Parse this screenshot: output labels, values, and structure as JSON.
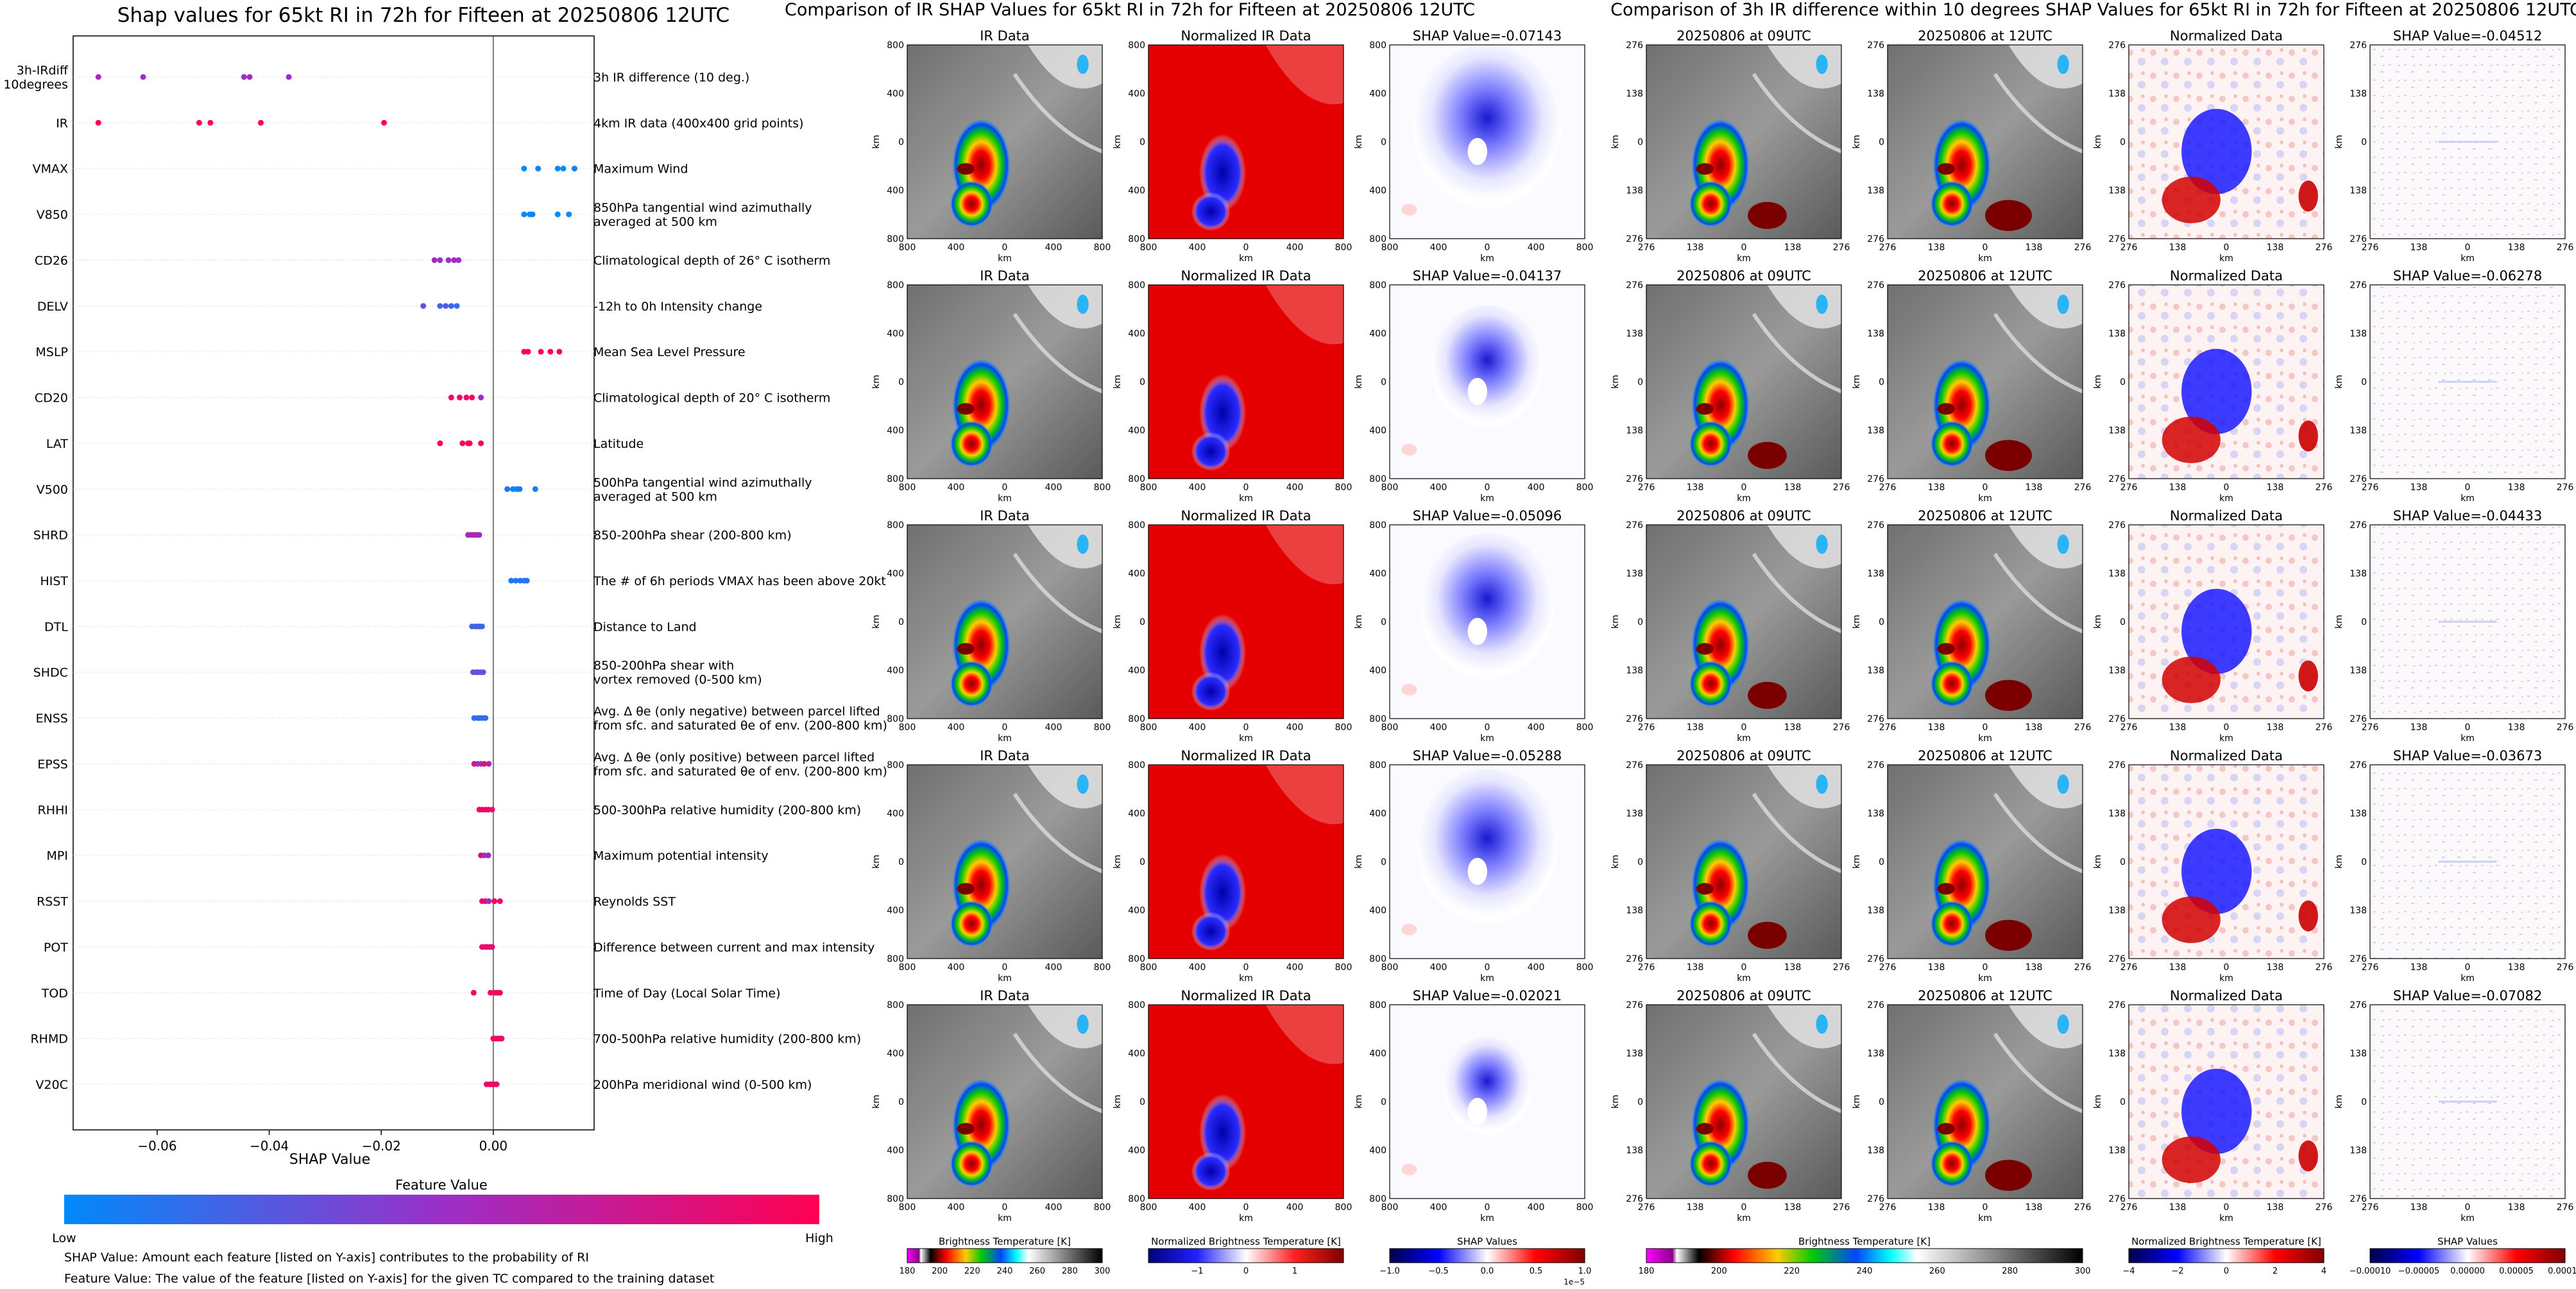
{
  "left_panel": {
    "title": "Shap values for 65kt RI in 72h for Fifteen at 20250806 12UTC",
    "xlabel": "SHAP Value",
    "colorbar_title": "Feature Value",
    "colorbar_low": "Low",
    "colorbar_high": "High",
    "footnote_1": "SHAP Value: Amount each feature [listed on Y-axis] contributes to the probability of RI",
    "footnote_2": "Feature Value: The value of the feature [listed on Y-axis] for the given TC compared to the training dataset"
  },
  "middle_panel": {
    "title": "Comparison of IR SHAP Values for 65kt RI in 72h for Fifteen at 20250806 12UTC",
    "col_titles": [
      "IR Data",
      "Normalized IR Data"
    ],
    "shap_prefix": "SHAP Value=",
    "shap_values": [
      "-0.07143",
      "-0.04137",
      "-0.05096",
      "-0.05288",
      "-0.02021"
    ],
    "ticks": [
      "800",
      "400",
      "0",
      "400",
      "800"
    ],
    "axis_label": "km",
    "colorbars": [
      {
        "label": "Brightness Temperature [K]",
        "ticks": [
          "180",
          "200",
          "220",
          "240",
          "260",
          "280",
          "300"
        ]
      },
      {
        "label": "Normalized Brightness Temperature [K]",
        "ticks": [
          "−1",
          "0",
          "1"
        ]
      },
      {
        "label": "SHAP Values",
        "ticks": [
          "−1.0",
          "−0.5",
          "0.0",
          "0.5",
          "1.0"
        ],
        "offset": "1e−5"
      }
    ]
  },
  "right_panel": {
    "title": "Comparison of 3h IR difference within 10 degrees SHAP Values for 65kt RI in 72h for Fifteen at 20250806 12UTC",
    "col_titles": [
      "20250806 at 09UTC",
      "20250806 at 12UTC",
      "Normalized Data"
    ],
    "shap_prefix": "SHAP Value=",
    "shap_values": [
      "-0.04512",
      "-0.06278",
      "-0.04433",
      "-0.03673",
      "-0.07082"
    ],
    "ticks": [
      "276",
      "138",
      "0",
      "138",
      "276"
    ],
    "axis_label": "km",
    "colorbars": [
      {
        "label": "Brightness Temperature [K]",
        "ticks": [
          "180",
          "200",
          "220",
          "240",
          "260",
          "280",
          "300"
        ]
      },
      {
        "label": "Normalized Brightness Temperature [K]",
        "ticks": [
          "−4",
          "−2",
          "0",
          "2",
          "4"
        ]
      },
      {
        "label": "SHAP Values",
        "ticks": [
          "−0.00010",
          "−0.00005",
          "0.00000",
          "0.00005",
          "0.00010"
        ]
      }
    ]
  },
  "colors": {
    "low": "#008afb",
    "mid": "#9b2fc8",
    "high": "#ff0052"
  },
  "chart_data": {
    "type": "scatter",
    "title": "Shap values for 65kt RI in 72h for Fifteen at 20250806 12UTC",
    "xlabel": "SHAP Value",
    "xlim": [
      -0.075,
      0.018
    ],
    "xticks": [
      "−0.06",
      "−0.04",
      "−0.02",
      "0.00"
    ],
    "xtick_values": [
      -0.06,
      -0.04,
      -0.02,
      0.0
    ],
    "features": [
      {
        "name": "3h-IRdiff\n10degrees",
        "desc": "3h IR difference (10 deg.)",
        "points": [
          [
            -0.0705,
            0.55
          ],
          [
            -0.0625,
            0.5
          ],
          [
            -0.0445,
            0.5
          ],
          [
            -0.0435,
            0.55
          ],
          [
            -0.0365,
            0.5
          ]
        ]
      },
      {
        "name": "IR",
        "desc": "4km IR data (400x400 grid points)",
        "points": [
          [
            -0.0705,
            1
          ],
          [
            -0.0525,
            1
          ],
          [
            -0.0505,
            1
          ],
          [
            -0.0415,
            1
          ],
          [
            -0.0195,
            1
          ]
        ]
      },
      {
        "name": "VMAX",
        "desc": "Maximum Wind",
        "points": [
          [
            0.0055,
            0
          ],
          [
            0.008,
            0.05
          ],
          [
            0.0115,
            0
          ],
          [
            0.0125,
            0
          ],
          [
            0.0145,
            0.05
          ]
        ]
      },
      {
        "name": "V850",
        "desc": "850hPa tangential wind azimuthally\naveraged at 500 km",
        "points": [
          [
            0.0055,
            0
          ],
          [
            0.0065,
            0
          ],
          [
            0.007,
            0.05
          ],
          [
            0.0115,
            0
          ],
          [
            0.0135,
            0
          ]
        ]
      },
      {
        "name": "CD26",
        "desc": "Climatological depth of 26° C isotherm",
        "points": [
          [
            -0.0105,
            0.55
          ],
          [
            -0.0095,
            0.5
          ],
          [
            -0.008,
            0.5
          ],
          [
            -0.007,
            0.55
          ],
          [
            -0.0062,
            0.5
          ]
        ]
      },
      {
        "name": "DELV",
        "desc": "-12h to 0h Intensity change",
        "points": [
          [
            -0.0125,
            0.3
          ],
          [
            -0.0095,
            0.2
          ],
          [
            -0.0085,
            0.25
          ],
          [
            -0.0075,
            0.2
          ],
          [
            -0.0065,
            0.15
          ]
        ]
      },
      {
        "name": "MSLP",
        "desc": "Mean Sea Level Pressure",
        "points": [
          [
            0.0055,
            1
          ],
          [
            0.0062,
            1
          ],
          [
            0.0085,
            1
          ],
          [
            0.0102,
            1
          ],
          [
            0.0118,
            1
          ]
        ]
      },
      {
        "name": "CD20",
        "desc": "Climatological depth of 20° C isotherm",
        "points": [
          [
            -0.0075,
            0.9
          ],
          [
            -0.006,
            0.95
          ],
          [
            -0.0048,
            0.9
          ],
          [
            -0.0038,
            0.95
          ],
          [
            -0.0022,
            0.5
          ]
        ]
      },
      {
        "name": "LAT",
        "desc": "Latitude",
        "points": [
          [
            -0.0095,
            1
          ],
          [
            -0.0055,
            0.95
          ],
          [
            -0.0045,
            0.9
          ],
          [
            -0.0042,
            1
          ],
          [
            -0.0022,
            0.95
          ]
        ]
      },
      {
        "name": "V500",
        "desc": "500hPa tangential wind azimuthally\naveraged at 500 km",
        "points": [
          [
            0.0025,
            0.1
          ],
          [
            0.0035,
            0.05
          ],
          [
            0.0042,
            0
          ],
          [
            0.0047,
            0.1
          ],
          [
            0.0075,
            0.05
          ]
        ]
      },
      {
        "name": "SHRD",
        "desc": "850-200hPa shear (200-800 km)",
        "points": [
          [
            -0.0045,
            0.6
          ],
          [
            -0.004,
            0.55
          ],
          [
            -0.0035,
            0.6
          ],
          [
            -0.003,
            0.6
          ],
          [
            -0.0025,
            0.55
          ]
        ]
      },
      {
        "name": "HIST",
        "desc": "The # of 6h periods VMAX has been above 20kt",
        "points": [
          [
            0.0032,
            0.1
          ],
          [
            0.004,
            0.1
          ],
          [
            0.0048,
            0.1
          ],
          [
            0.0055,
            0.1
          ],
          [
            0.006,
            0.1
          ]
        ]
      },
      {
        "name": "DTL",
        "desc": "Distance to Land",
        "points": [
          [
            -0.0038,
            0.2
          ],
          [
            -0.0032,
            0.25
          ],
          [
            -0.0028,
            0.2
          ],
          [
            -0.0024,
            0.25
          ],
          [
            -0.002,
            0.2
          ]
        ]
      },
      {
        "name": "SHDC",
        "desc": "850-200hPa shear with\nvortex removed (0-500 km)",
        "points": [
          [
            -0.0036,
            0.3
          ],
          [
            -0.003,
            0.35
          ],
          [
            -0.0026,
            0.3
          ],
          [
            -0.0022,
            0.25
          ],
          [
            -0.0018,
            0.3
          ]
        ]
      },
      {
        "name": "ENSS",
        "desc": "Avg. Δ θe (only negative) between parcel lifted\nfrom sfc. and saturated θe of env. (200-800 km)",
        "points": [
          [
            -0.0034,
            0.15
          ],
          [
            -0.0028,
            0.2
          ],
          [
            -0.0024,
            0.15
          ],
          [
            -0.0019,
            0.2
          ],
          [
            -0.0014,
            0.15
          ]
        ]
      },
      {
        "name": "EPSS",
        "desc": "Avg. Δ θe (only positive) between parcel lifted\nfrom sfc. and saturated θe of env. (200-800 km)",
        "points": [
          [
            -0.0034,
            0.9
          ],
          [
            -0.0028,
            0.5
          ],
          [
            -0.0022,
            0.5
          ],
          [
            -0.0016,
            0.9
          ],
          [
            -0.0008,
            0.6
          ]
        ]
      },
      {
        "name": "RHHI",
        "desc": "500-300hPa relative humidity (200-800 km)",
        "points": [
          [
            -0.0025,
            0.9
          ],
          [
            -0.002,
            0.95
          ],
          [
            -0.0014,
            0.9
          ],
          [
            -0.0009,
            0.95
          ],
          [
            -0.0002,
            0.9
          ]
        ]
      },
      {
        "name": "MPI",
        "desc": "Maximum potential intensity",
        "points": [
          [
            -0.0022,
            0.9
          ],
          [
            -0.0016,
            0.5
          ],
          [
            -0.0009,
            0.55
          ]
        ]
      },
      {
        "name": "RSST",
        "desc": "Reynolds SST",
        "points": [
          [
            -0.002,
            0.9
          ],
          [
            -0.0014,
            0.9
          ],
          [
            -0.0008,
            0.5
          ],
          [
            0.0002,
            0.95
          ],
          [
            0.0012,
            0.9
          ]
        ]
      },
      {
        "name": "POT",
        "desc": "Difference between current and max intensity",
        "points": [
          [
            -0.002,
            0.9
          ],
          [
            -0.0015,
            0.85
          ],
          [
            -0.0011,
            0.9
          ],
          [
            -0.0006,
            0.9
          ],
          [
            -0.0002,
            0.85
          ]
        ]
      },
      {
        "name": "TOD",
        "desc": "Time of Day (Local Solar Time)",
        "points": [
          [
            -0.0035,
            0.9
          ],
          [
            -0.0005,
            0.9
          ],
          [
            0.0002,
            0.95
          ],
          [
            0.0007,
            0.9
          ],
          [
            0.0012,
            0.95
          ]
        ]
      },
      {
        "name": "RHMD",
        "desc": "700-500hPa relative humidity (200-800 km)",
        "points": [
          [
            0.0,
            0.95
          ],
          [
            0.0004,
            0.9
          ],
          [
            0.0008,
            0.95
          ],
          [
            0.0012,
            0.9
          ],
          [
            0.0015,
            0.9
          ]
        ]
      },
      {
        "name": "V20C",
        "desc": "200hPa meridional wind (0-500 km)",
        "points": [
          [
            -0.0012,
            0.9
          ],
          [
            -0.0006,
            0.9
          ],
          [
            -0.0002,
            0.95
          ],
          [
            0.0002,
            0.9
          ],
          [
            0.0006,
            0.9
          ]
        ]
      }
    ]
  }
}
